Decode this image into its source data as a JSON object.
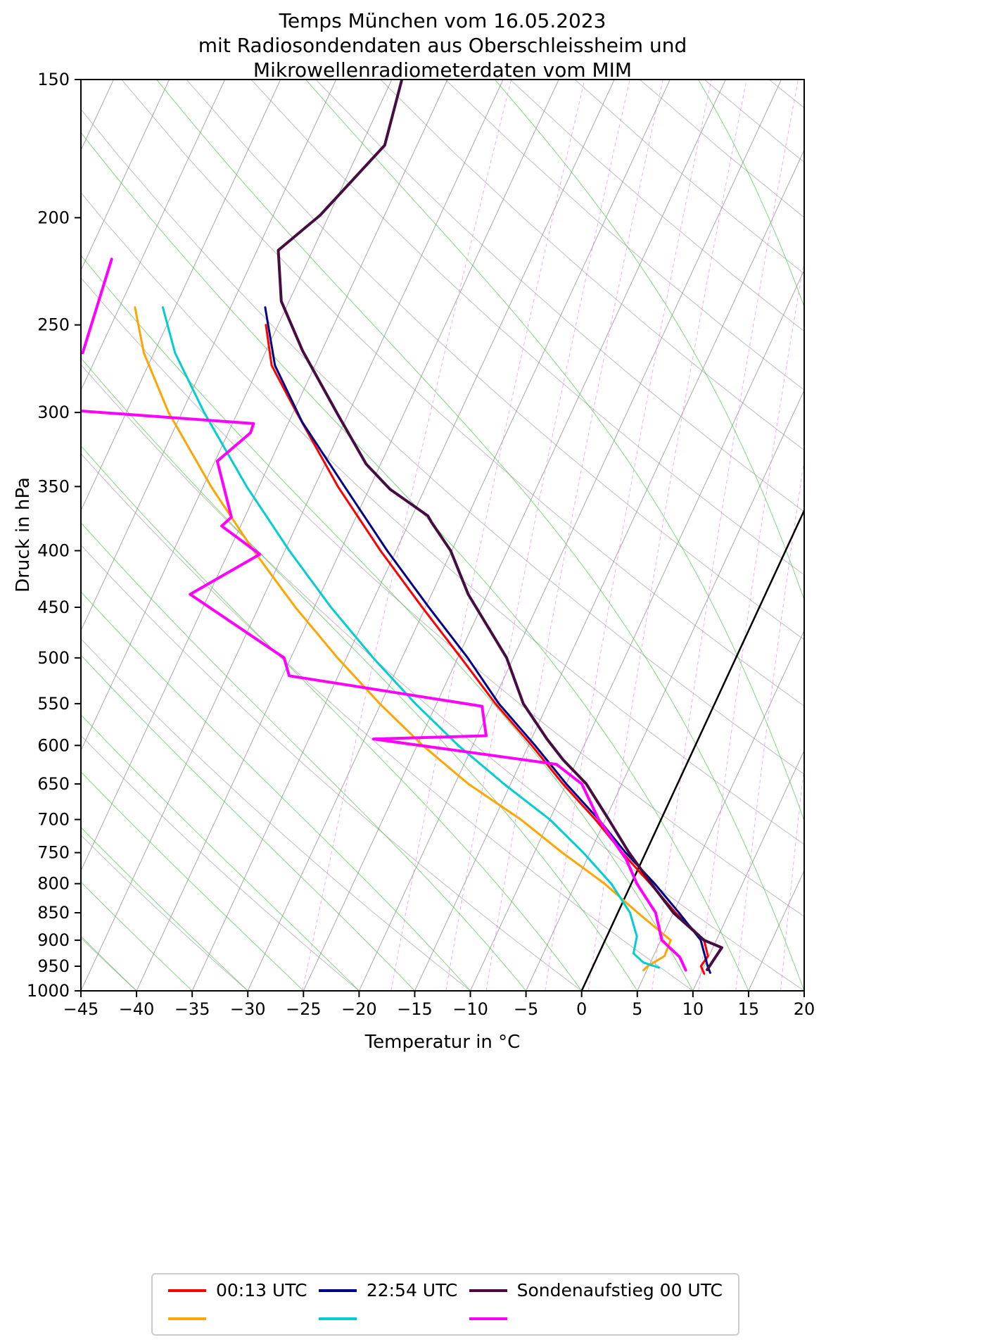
{
  "chart_data": {
    "type": "line",
    "projection": "skew-T log-p",
    "title": "Temps München vom 16.05.2023\nmit Radiosondendaten aus Oberschleissheim und\nMikrowellenradiometerdaten vom MIM",
    "title_lines": [
      "Temps München vom 16.05.2023",
      "mit Radiosondendaten aus Oberschleissheim und",
      "Mikrowellenradiometerdaten vom MIM"
    ],
    "xlabel": "Temperatur in °C",
    "ylabel": "Druck in hPa",
    "xlim": [
      -45,
      20
    ],
    "plim": [
      1000,
      150
    ],
    "y_scale": "log",
    "x_ticks": [
      -45,
      -40,
      -35,
      -30,
      -25,
      -20,
      -15,
      -10,
      -5,
      0,
      5,
      10,
      15,
      20
    ],
    "pressure_ticks": [
      150,
      200,
      250,
      300,
      350,
      400,
      450,
      500,
      550,
      600,
      650,
      700,
      750,
      800,
      850,
      900,
      950,
      1000
    ],
    "skew_factor_degC_per_ln_p": 20,
    "point_format": "[pressure_hPa, temperature_degC]",
    "background": {
      "isotherm_color": "#999999",
      "isotherm_step_degC": 5,
      "isotherm_range_degC": [
        -85,
        20
      ],
      "zero_isotherm_color": "#000000",
      "dry_adiabat_color": "#888888",
      "dry_adiabat_step_degC": 10,
      "dry_adiabat_range_degC": [
        -40,
        160
      ],
      "moist_adiabat_color": "#3fbf3f",
      "moist_adiabat_step_degC": 5,
      "moist_adiabat_range_degC": [
        -40,
        40
      ],
      "mixing_ratio_color": "#f070f0",
      "mixing_ratio_lines_g_per_kg": [
        0.5,
        1,
        1.5,
        2,
        3,
        4,
        6,
        8,
        10,
        13,
        17,
        22,
        28
      ]
    },
    "series": [
      {
        "id": "temperature-0013utc",
        "label": "00:13 UTC",
        "role": "temperature",
        "color": "#ff0000",
        "width": 3,
        "segments": [
          [
            [
              965,
              10.3
            ],
            [
              950,
              9.7
            ],
            [
              930,
              9.9
            ],
            [
              900,
              8.9
            ],
            [
              850,
              5.2
            ],
            [
              800,
              1.7
            ],
            [
              750,
              -2.1
            ],
            [
              700,
              -5.9
            ],
            [
              650,
              -10.3
            ],
            [
              600,
              -14.7
            ],
            [
              550,
              -19.7
            ],
            [
              500,
              -24.7
            ],
            [
              450,
              -30.3
            ],
            [
              400,
              -36.4
            ],
            [
              350,
              -42.9
            ],
            [
              300,
              -49.7
            ],
            [
              272,
              -53.9
            ],
            [
              250,
              -56.1
            ]
          ]
        ]
      },
      {
        "id": "dewpoint-0013utc",
        "label": "00:13 UTC",
        "role": "dewpoint",
        "color": "#ffa500",
        "width": 3,
        "segments": [
          [
            [
              958,
              4.7
            ],
            [
              950,
              4.9
            ],
            [
              930,
              6.0
            ],
            [
              900,
              5.9
            ],
            [
              850,
              1.8
            ],
            [
              800,
              -2.4
            ],
            [
              750,
              -7.5
            ],
            [
              700,
              -12.6
            ],
            [
              650,
              -18.8
            ],
            [
              600,
              -24.5
            ],
            [
              550,
              -30.1
            ],
            [
              500,
              -35.8
            ],
            [
              450,
              -41.7
            ],
            [
              400,
              -47.8
            ],
            [
              350,
              -54.3
            ],
            [
              300,
              -61.2
            ],
            [
              265,
              -65.9
            ],
            [
              241,
              -68.6
            ]
          ]
        ]
      },
      {
        "id": "temperature-2254utc",
        "label": "22:54 UTC",
        "role": "temperature",
        "color": "#00008b",
        "width": 3,
        "segments": [
          [
            [
              963,
              10.8
            ],
            [
              950,
              10.3
            ],
            [
              900,
              8.6
            ],
            [
              850,
              5.5
            ],
            [
              800,
              2.1
            ],
            [
              750,
              -1.8
            ],
            [
              700,
              -5.6
            ],
            [
              650,
              -10.0
            ],
            [
              600,
              -14.4
            ],
            [
              550,
              -19.4
            ],
            [
              500,
              -24.1
            ],
            [
              450,
              -29.7
            ],
            [
              400,
              -35.8
            ],
            [
              350,
              -42.3
            ],
            [
              306,
              -48.8
            ],
            [
              272,
              -53.6
            ],
            [
              241,
              -56.9
            ]
          ]
        ]
      },
      {
        "id": "dewpoint-2254utc",
        "label": "22:54 UTC",
        "role": "dewpoint",
        "color": "#00ced1",
        "width": 3,
        "segments": [
          [
            [
              953,
              6.0
            ],
            [
              943,
              4.4
            ],
            [
              925,
              3.1
            ],
            [
              893,
              2.7
            ],
            [
              850,
              1.1
            ],
            [
              800,
              -1.8
            ],
            [
              750,
              -5.6
            ],
            [
              700,
              -10.0
            ],
            [
              650,
              -15.6
            ],
            [
              600,
              -21.3
            ],
            [
              550,
              -26.9
            ],
            [
              500,
              -32.6
            ],
            [
              450,
              -38.5
            ],
            [
              400,
              -44.6
            ],
            [
              350,
              -51.1
            ],
            [
              300,
              -58.0
            ],
            [
              265,
              -63.1
            ],
            [
              241,
              -66.1
            ]
          ]
        ]
      },
      {
        "id": "temperature-sondenaufstieg-00utc",
        "label": "Sondenaufstieg 00 UTC",
        "role": "temperature",
        "color": "#460d42",
        "width": 4,
        "segments": [
          [
            [
              957,
              10.4
            ],
            [
              914,
              10.8
            ],
            [
              900,
              8.9
            ],
            [
              850,
              5.0
            ],
            [
              800,
              1.8
            ],
            [
              750,
              -1.5
            ],
            [
              700,
              -4.7
            ],
            [
              650,
              -8.2
            ],
            [
              618,
              -11.3
            ],
            [
              592,
              -13.6
            ],
            [
              550,
              -17.2
            ],
            [
              500,
              -20.6
            ],
            [
              438,
              -26.7
            ],
            [
              400,
              -30.1
            ],
            [
              377,
              -33.0
            ],
            [
              372,
              -33.6
            ],
            [
              352,
              -38.1
            ],
            [
              334,
              -41.3
            ],
            [
              302,
              -45.8
            ],
            [
              264,
              -51.7
            ],
            [
              238,
              -55.7
            ],
            [
              214,
              -58.1
            ],
            [
              199,
              -55.8
            ],
            [
              172,
              -52.9
            ],
            [
              150,
              -54.1
            ]
          ]
        ]
      },
      {
        "id": "dewpoint-sondenaufstieg-00utc",
        "label": "Sondenaufstieg 00 UTC",
        "role": "dewpoint",
        "color": "#ff00ff",
        "width": 4,
        "segments": [
          [
            [
              958,
              8.5
            ],
            [
              932,
              7.4
            ],
            [
              900,
              5.1
            ],
            [
              850,
              3.4
            ],
            [
              800,
              0.5
            ],
            [
              760,
              -1.5
            ],
            [
              700,
              -5.6
            ],
            [
              650,
              -8.6
            ],
            [
              624,
              -11.7
            ],
            [
              592,
              -29.2
            ],
            [
              588,
              -19.2
            ],
            [
              553,
              -20.8
            ],
            [
              519,
              -39.4
            ],
            [
              500,
              -40.6
            ],
            [
              438,
              -51.7
            ],
            [
              403,
              -47.1
            ],
            [
              380,
              -51.7
            ],
            [
              373,
              -51.2
            ],
            [
              332,
              -54.8
            ],
            [
              313,
              -53.0
            ],
            [
              307,
              -53.1
            ],
            [
              301,
              -65.2
            ],
            [
              299,
              -69.2
            ]
          ],
          [
            [
              265,
              -71.4
            ],
            [
              218,
              -72.7
            ]
          ]
        ]
      }
    ]
  },
  "legend": {
    "entries": [
      {
        "label": "00:13 UTC",
        "colors": [
          "#ff0000",
          "#ffa500"
        ]
      },
      {
        "label": "22:54 UTC",
        "colors": [
          "#00008b",
          "#00ced1"
        ]
      },
      {
        "label": "Sondenaufstieg 00 UTC",
        "colors": [
          "#460d42",
          "#ff00ff"
        ]
      }
    ]
  }
}
